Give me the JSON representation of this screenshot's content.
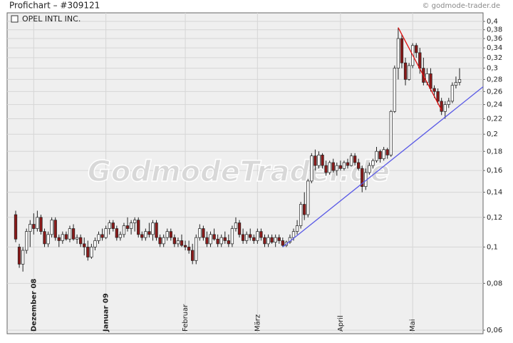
{
  "chart_data": {
    "type": "candlestick",
    "title": "Profichart – #309121",
    "source": "© godmode-trader.de",
    "legend": "OPEL INTL INC.",
    "watermark": "GodmodeTrader.de",
    "log_scale": true,
    "grid": true,
    "up_color": "#ffffff",
    "down_color": "#8b1a1a",
    "ylim": [
      0.06,
      0.4
    ],
    "yticks": [
      {
        "value": 0.06,
        "label": "0,06"
      },
      {
        "value": 0.08,
        "label": "0,08"
      },
      {
        "value": 0.1,
        "label": "0,1"
      },
      {
        "value": 0.12,
        "label": "0,12"
      },
      {
        "value": 0.14,
        "label": "0,14"
      },
      {
        "value": 0.16,
        "label": "0,16"
      },
      {
        "value": 0.18,
        "label": "0,18"
      },
      {
        "value": 0.2,
        "label": "0,2"
      },
      {
        "value": 0.22,
        "label": "0,22"
      },
      {
        "value": 0.24,
        "label": "0,24"
      },
      {
        "value": 0.26,
        "label": "0,26"
      },
      {
        "value": 0.28,
        "label": "0,28"
      },
      {
        "value": 0.3,
        "label": "0,3"
      },
      {
        "value": 0.32,
        "label": "0,32"
      },
      {
        "value": 0.34,
        "label": "0,34"
      },
      {
        "value": 0.36,
        "label": "0,36"
      },
      {
        "value": 0.38,
        "label": "0,38"
      },
      {
        "value": 0.4,
        "label": "0,4"
      }
    ],
    "categories": [
      null,
      null,
      null,
      null,
      null,
      "Dezember 08",
      null,
      null,
      null,
      null,
      null,
      null,
      null,
      null,
      null,
      null,
      null,
      null,
      null,
      null,
      null,
      null,
      null,
      null,
      null,
      "Januar 09",
      null,
      null,
      null,
      null,
      null,
      null,
      null,
      null,
      null,
      null,
      null,
      null,
      null,
      null,
      null,
      null,
      null,
      null,
      null,
      null,
      null,
      "Februar",
      null,
      null,
      null,
      null,
      null,
      null,
      null,
      null,
      null,
      null,
      null,
      null,
      null,
      null,
      null,
      null,
      null,
      null,
      null,
      "März",
      null,
      null,
      null,
      null,
      null,
      null,
      null,
      null,
      null,
      null,
      null,
      null,
      null,
      null,
      null,
      null,
      null,
      null,
      null,
      null,
      null,
      null,
      "April",
      null,
      null,
      null,
      null,
      null,
      null,
      null,
      null,
      null,
      null,
      null,
      null,
      null,
      null,
      null,
      null,
      null,
      null,
      null,
      "Mai",
      null,
      null,
      null,
      null,
      null,
      null,
      null,
      null,
      null,
      null,
      null,
      null,
      null
    ],
    "ohlc": [
      [
        0.122,
        0.125,
        0.103,
        0.105
      ],
      [
        0.1,
        0.102,
        0.088,
        0.09
      ],
      [
        0.09,
        0.1,
        0.086,
        0.098
      ],
      [
        0.098,
        0.112,
        0.096,
        0.11
      ],
      [
        0.11,
        0.118,
        0.1,
        0.115
      ],
      [
        0.115,
        0.123,
        0.108,
        0.112
      ],
      [
        0.112,
        0.125,
        0.11,
        0.12
      ],
      [
        0.12,
        0.122,
        0.108,
        0.11
      ],
      [
        0.11,
        0.112,
        0.1,
        0.102
      ],
      [
        0.102,
        0.11,
        0.1,
        0.108
      ],
      [
        0.108,
        0.12,
        0.106,
        0.118
      ],
      [
        0.118,
        0.12,
        0.104,
        0.106
      ],
      [
        0.106,
        0.108,
        0.1,
        0.104
      ],
      [
        0.104,
        0.11,
        0.102,
        0.108
      ],
      [
        0.108,
        0.11,
        0.104,
        0.105
      ],
      [
        0.105,
        0.114,
        0.103,
        0.112
      ],
      [
        0.112,
        0.115,
        0.104,
        0.105
      ],
      [
        0.105,
        0.108,
        0.102,
        0.106
      ],
      [
        0.106,
        0.108,
        0.1,
        0.102
      ],
      [
        0.102,
        0.106,
        0.095,
        0.1
      ],
      [
        0.1,
        0.104,
        0.092,
        0.094
      ],
      [
        0.094,
        0.102,
        0.093,
        0.1
      ],
      [
        0.1,
        0.106,
        0.098,
        0.104
      ],
      [
        0.104,
        0.11,
        0.102,
        0.108
      ],
      [
        0.108,
        0.112,
        0.104,
        0.106
      ],
      [
        0.106,
        0.114,
        0.105,
        0.112
      ],
      [
        0.112,
        0.118,
        0.108,
        0.116
      ],
      [
        0.116,
        0.118,
        0.11,
        0.112
      ],
      [
        0.112,
        0.114,
        0.104,
        0.106
      ],
      [
        0.106,
        0.11,
        0.104,
        0.108
      ],
      [
        0.108,
        0.116,
        0.106,
        0.114
      ],
      [
        0.114,
        0.12,
        0.11,
        0.112
      ],
      [
        0.112,
        0.118,
        0.108,
        0.116
      ],
      [
        0.116,
        0.12,
        0.11,
        0.118
      ],
      [
        0.118,
        0.12,
        0.106,
        0.108
      ],
      [
        0.108,
        0.11,
        0.104,
        0.106
      ],
      [
        0.106,
        0.112,
        0.104,
        0.11
      ],
      [
        0.11,
        0.116,
        0.106,
        0.108
      ],
      [
        0.108,
        0.118,
        0.104,
        0.116
      ],
      [
        0.116,
        0.118,
        0.104,
        0.106
      ],
      [
        0.106,
        0.108,
        0.1,
        0.102
      ],
      [
        0.102,
        0.108,
        0.1,
        0.106
      ],
      [
        0.106,
        0.112,
        0.104,
        0.11
      ],
      [
        0.11,
        0.112,
        0.104,
        0.106
      ],
      [
        0.106,
        0.108,
        0.1,
        0.102
      ],
      [
        0.102,
        0.106,
        0.1,
        0.104
      ],
      [
        0.104,
        0.108,
        0.1,
        0.101
      ],
      [
        0.101,
        0.104,
        0.098,
        0.1
      ],
      [
        0.1,
        0.104,
        0.096,
        0.098
      ],
      [
        0.098,
        0.102,
        0.09,
        0.092
      ],
      [
        0.092,
        0.108,
        0.09,
        0.106
      ],
      [
        0.106,
        0.115,
        0.104,
        0.112
      ],
      [
        0.112,
        0.114,
        0.104,
        0.106
      ],
      [
        0.106,
        0.11,
        0.1,
        0.102
      ],
      [
        0.102,
        0.11,
        0.1,
        0.108
      ],
      [
        0.108,
        0.112,
        0.104,
        0.105
      ],
      [
        0.105,
        0.108,
        0.1,
        0.102
      ],
      [
        0.102,
        0.108,
        0.1,
        0.106
      ],
      [
        0.106,
        0.11,
        0.102,
        0.104
      ],
      [
        0.104,
        0.108,
        0.1,
        0.102
      ],
      [
        0.102,
        0.114,
        0.1,
        0.112
      ],
      [
        0.112,
        0.12,
        0.11,
        0.116
      ],
      [
        0.116,
        0.118,
        0.106,
        0.108
      ],
      [
        0.108,
        0.112,
        0.102,
        0.104
      ],
      [
        0.104,
        0.11,
        0.102,
        0.108
      ],
      [
        0.108,
        0.112,
        0.104,
        0.106
      ],
      [
        0.106,
        0.108,
        0.102,
        0.104
      ],
      [
        0.104,
        0.112,
        0.102,
        0.11
      ],
      [
        0.11,
        0.112,
        0.104,
        0.106
      ],
      [
        0.106,
        0.108,
        0.1,
        0.102
      ],
      [
        0.102,
        0.108,
        0.1,
        0.106
      ],
      [
        0.106,
        0.108,
        0.102,
        0.103
      ],
      [
        0.103,
        0.108,
        0.1,
        0.106
      ],
      [
        0.106,
        0.108,
        0.102,
        0.104
      ],
      [
        0.104,
        0.106,
        0.1,
        0.101
      ],
      [
        0.101,
        0.104,
        0.1,
        0.103
      ],
      [
        0.103,
        0.108,
        0.102,
        0.106
      ],
      [
        0.106,
        0.112,
        0.104,
        0.11
      ],
      [
        0.11,
        0.118,
        0.108,
        0.114
      ],
      [
        0.114,
        0.132,
        0.112,
        0.13
      ],
      [
        0.13,
        0.14,
        0.118,
        0.122
      ],
      [
        0.122,
        0.152,
        0.12,
        0.15
      ],
      [
        0.15,
        0.178,
        0.148,
        0.175
      ],
      [
        0.175,
        0.182,
        0.16,
        0.165
      ],
      [
        0.165,
        0.18,
        0.162,
        0.176
      ],
      [
        0.176,
        0.178,
        0.162,
        0.165
      ],
      [
        0.165,
        0.17,
        0.155,
        0.158
      ],
      [
        0.158,
        0.17,
        0.156,
        0.168
      ],
      [
        0.168,
        0.172,
        0.158,
        0.16
      ],
      [
        0.16,
        0.168,
        0.155,
        0.165
      ],
      [
        0.165,
        0.17,
        0.16,
        0.162
      ],
      [
        0.162,
        0.17,
        0.16,
        0.168
      ],
      [
        0.168,
        0.172,
        0.162,
        0.165
      ],
      [
        0.165,
        0.178,
        0.164,
        0.175
      ],
      [
        0.175,
        0.178,
        0.165,
        0.168
      ],
      [
        0.168,
        0.172,
        0.16,
        0.162
      ],
      [
        0.162,
        0.165,
        0.14,
        0.145
      ],
      [
        0.145,
        0.162,
        0.142,
        0.158
      ],
      [
        0.158,
        0.168,
        0.156,
        0.165
      ],
      [
        0.165,
        0.172,
        0.162,
        0.17
      ],
      [
        0.17,
        0.185,
        0.168,
        0.18
      ],
      [
        0.18,
        0.182,
        0.168,
        0.172
      ],
      [
        0.172,
        0.185,
        0.17,
        0.182
      ],
      [
        0.182,
        0.184,
        0.172,
        0.176
      ],
      [
        0.176,
        0.232,
        0.174,
        0.23
      ],
      [
        0.23,
        0.305,
        0.228,
        0.3
      ],
      [
        0.3,
        0.385,
        0.28,
        0.36
      ],
      [
        0.36,
        0.37,
        0.3,
        0.31
      ],
      [
        0.31,
        0.32,
        0.27,
        0.28
      ],
      [
        0.28,
        0.31,
        0.278,
        0.305
      ],
      [
        0.305,
        0.35,
        0.3,
        0.345
      ],
      [
        0.345,
        0.35,
        0.32,
        0.33
      ],
      [
        0.33,
        0.34,
        0.29,
        0.3
      ],
      [
        0.3,
        0.32,
        0.27,
        0.275
      ],
      [
        0.275,
        0.3,
        0.27,
        0.29
      ],
      [
        0.29,
        0.3,
        0.26,
        0.265
      ],
      [
        0.265,
        0.27,
        0.25,
        0.26
      ],
      [
        0.26,
        0.265,
        0.24,
        0.245
      ],
      [
        0.245,
        0.25,
        0.225,
        0.23
      ],
      [
        0.23,
        0.245,
        0.22,
        0.24
      ],
      [
        0.24,
        0.25,
        0.235,
        0.245
      ],
      [
        0.245,
        0.275,
        0.242,
        0.27
      ],
      [
        0.27,
        0.285,
        0.265,
        0.275
      ],
      [
        0.275,
        0.3,
        0.27,
        0.28
      ]
    ],
    "trendlines": [
      {
        "color": "#e01010",
        "points": [
          [
            106,
            0.385
          ],
          [
            118,
            0.232
          ]
        ]
      },
      {
        "color": "#5a5ae6",
        "points": [
          [
            74,
            0.1
          ],
          [
            130,
            0.27
          ]
        ]
      }
    ]
  }
}
